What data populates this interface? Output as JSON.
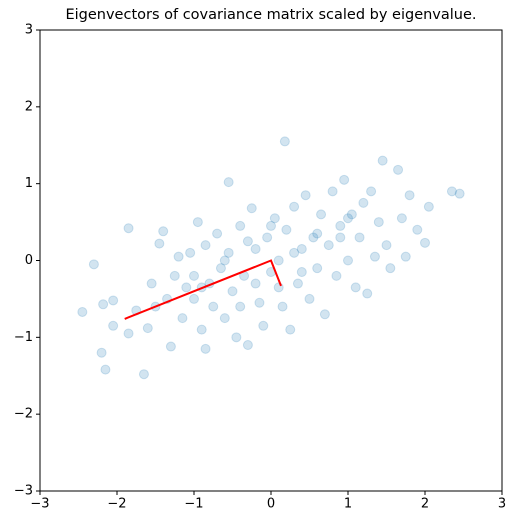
{
  "chart_data": {
    "type": "scatter",
    "title": "Eigenvectors of covariance matrix scaled by eigenvalue.",
    "xlim": [
      -3,
      3
    ],
    "ylim": [
      -3,
      3
    ],
    "xticks": [
      {
        "value": -3,
        "label": "−3"
      },
      {
        "value": -2,
        "label": "−2"
      },
      {
        "value": -1,
        "label": "−1"
      },
      0,
      1,
      2,
      3
    ],
    "yticks": [
      {
        "value": -3,
        "label": "−3"
      },
      {
        "value": -2,
        "label": "−2"
      },
      {
        "value": -1,
        "label": "−1"
      },
      0,
      1,
      2,
      3
    ],
    "series": [
      {
        "type": "scatter",
        "color": "#1f77b4",
        "x": [
          -2.45,
          -2.3,
          -2.2,
          -2.15,
          -2.18,
          -2.05,
          -2.05,
          -1.85,
          -1.85,
          -1.75,
          -1.65,
          -1.6,
          -1.55,
          -1.5,
          -1.45,
          -1.4,
          -1.35,
          -1.3,
          -1.25,
          -1.2,
          -1.15,
          -1.1,
          -1.05,
          -1.0,
          -0.95,
          -0.9,
          -0.85,
          -0.85,
          -0.8,
          -0.75,
          -0.7,
          -0.65,
          -0.6,
          -0.55,
          -0.55,
          -0.5,
          -0.45,
          -0.4,
          -0.35,
          -0.3,
          -0.25,
          -0.2,
          -0.15,
          -0.1,
          -0.05,
          0.0,
          0.05,
          0.1,
          0.15,
          0.18,
          0.2,
          0.25,
          0.3,
          0.35,
          0.4,
          0.45,
          0.5,
          0.55,
          0.6,
          0.65,
          0.7,
          0.75,
          0.8,
          0.85,
          0.9,
          0.95,
          1.0,
          1.05,
          1.1,
          1.15,
          1.2,
          1.25,
          1.3,
          1.35,
          1.4,
          1.45,
          1.5,
          1.55,
          1.65,
          1.7,
          1.75,
          1.8,
          1.9,
          2.0,
          2.05,
          2.35,
          2.45,
          -0.2,
          0.3,
          -0.6,
          0.6,
          -0.9,
          0.9,
          0.0,
          -0.3,
          0.4,
          -1.0,
          1.0,
          0.1,
          -0.4
        ],
        "y": [
          -0.67,
          -0.05,
          -1.2,
          -1.42,
          -0.57,
          -0.52,
          -0.85,
          0.42,
          -0.95,
          -0.65,
          -1.48,
          -0.88,
          -0.3,
          -0.6,
          0.22,
          0.38,
          -0.5,
          -1.12,
          -0.2,
          0.05,
          -0.75,
          -0.35,
          0.1,
          -0.5,
          0.5,
          -0.9,
          -1.15,
          0.2,
          -0.3,
          -0.6,
          0.35,
          -0.1,
          -0.75,
          1.02,
          0.1,
          -0.4,
          -1.0,
          0.45,
          -0.2,
          -1.1,
          0.68,
          0.15,
          -0.55,
          -0.85,
          0.3,
          -0.15,
          0.55,
          0.0,
          -0.6,
          1.55,
          0.4,
          -0.9,
          0.7,
          -0.3,
          0.15,
          0.85,
          -0.5,
          0.3,
          -0.1,
          0.6,
          -0.7,
          0.2,
          0.9,
          -0.2,
          0.45,
          1.05,
          0.0,
          0.6,
          -0.35,
          0.3,
          0.75,
          -0.43,
          0.9,
          0.05,
          0.5,
          1.3,
          0.2,
          -0.1,
          1.18,
          0.55,
          0.05,
          0.85,
          0.4,
          0.23,
          0.7,
          0.9,
          0.87,
          -0.3,
          0.1,
          0.0,
          0.35,
          -0.35,
          0.3,
          0.45,
          0.25,
          -0.15,
          -0.2,
          0.55,
          -0.35,
          -0.6
        ]
      },
      {
        "type": "line",
        "color": "#ff0000",
        "x": [
          -1.9,
          0,
          0.13
        ],
        "y": [
          -0.76,
          0,
          -0.33
        ]
      }
    ]
  }
}
